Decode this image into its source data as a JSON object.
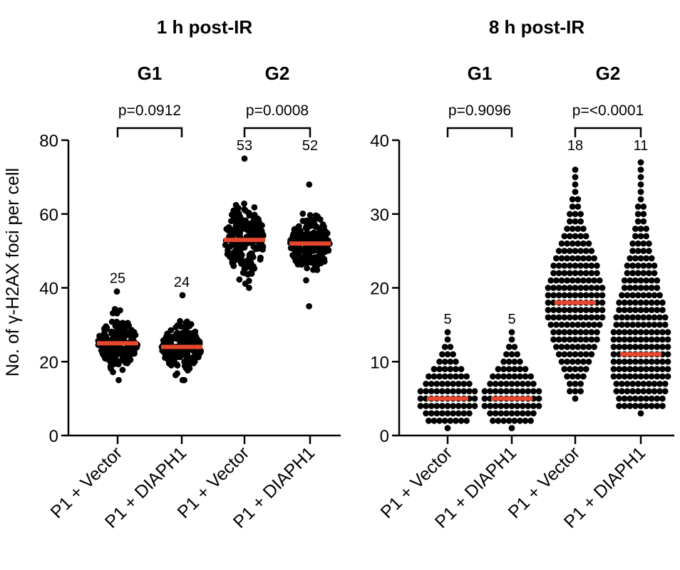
{
  "chart_data": [
    {
      "type": "scatter",
      "subtype": "dot-plot",
      "title": "1 h post-IR",
      "ylabel": "No. of γ-H2AX foci per cell",
      "ylim": [
        0,
        80
      ],
      "yticks": [
        0,
        20,
        40,
        60,
        80
      ],
      "grid": false,
      "categories": [
        "P1 + Vector",
        "P1 + DIAPH1",
        "P1 + Vector",
        "P1 + DIAPH1"
      ],
      "phase_groups": [
        {
          "label": "G1",
          "categories": [
            0,
            1
          ],
          "p_value": "p=0.0912"
        },
        {
          "label": "G2",
          "categories": [
            2,
            3
          ],
          "p_value": "p=0.0008"
        }
      ],
      "series": [
        {
          "name": "G1 P1 + Vector",
          "median": 25,
          "median_label": "25",
          "min": 15,
          "max": 39
        },
        {
          "name": "G1 P1 + DIAPH1",
          "median": 24,
          "median_label": "24",
          "min": 15,
          "max": 38
        },
        {
          "name": "G2 P1 + Vector",
          "median": 53,
          "median_label": "53",
          "min": 40,
          "max": 75
        },
        {
          "name": "G2 P1 + DIAPH1",
          "median": 52,
          "median_label": "52",
          "min": 35,
          "max": 68
        }
      ]
    },
    {
      "type": "scatter",
      "subtype": "dot-plot",
      "title": "8 h post-IR",
      "ylabel": "",
      "ylim": [
        0,
        40
      ],
      "yticks": [
        0,
        10,
        20,
        30,
        40
      ],
      "grid": false,
      "categories": [
        "P1 + Vector",
        "P1 + DIAPH1",
        "P1 + Vector",
        "P1 + DIAPH1"
      ],
      "phase_groups": [
        {
          "label": "G1",
          "categories": [
            0,
            1
          ],
          "p_value": "p=0.9096"
        },
        {
          "label": "G2",
          "categories": [
            2,
            3
          ],
          "p_value": "p=<0.0001"
        }
      ],
      "series": [
        {
          "name": "G1 P1 + Vector",
          "median": 5,
          "median_label": "5",
          "min": 1,
          "max": 14
        },
        {
          "name": "G1 P1 + DIAPH1",
          "median": 5,
          "median_label": "5",
          "min": 1,
          "max": 14
        },
        {
          "name": "G2 P1 + Vector",
          "median": 18,
          "median_label": "18",
          "min": 5,
          "max": 36
        },
        {
          "name": "G2 P1 + DIAPH1",
          "median": 11,
          "median_label": "11",
          "min": 3,
          "max": 37
        }
      ]
    }
  ],
  "colors": {
    "points": "#000000",
    "median_line": "#e8472f",
    "axis": "#000000"
  }
}
